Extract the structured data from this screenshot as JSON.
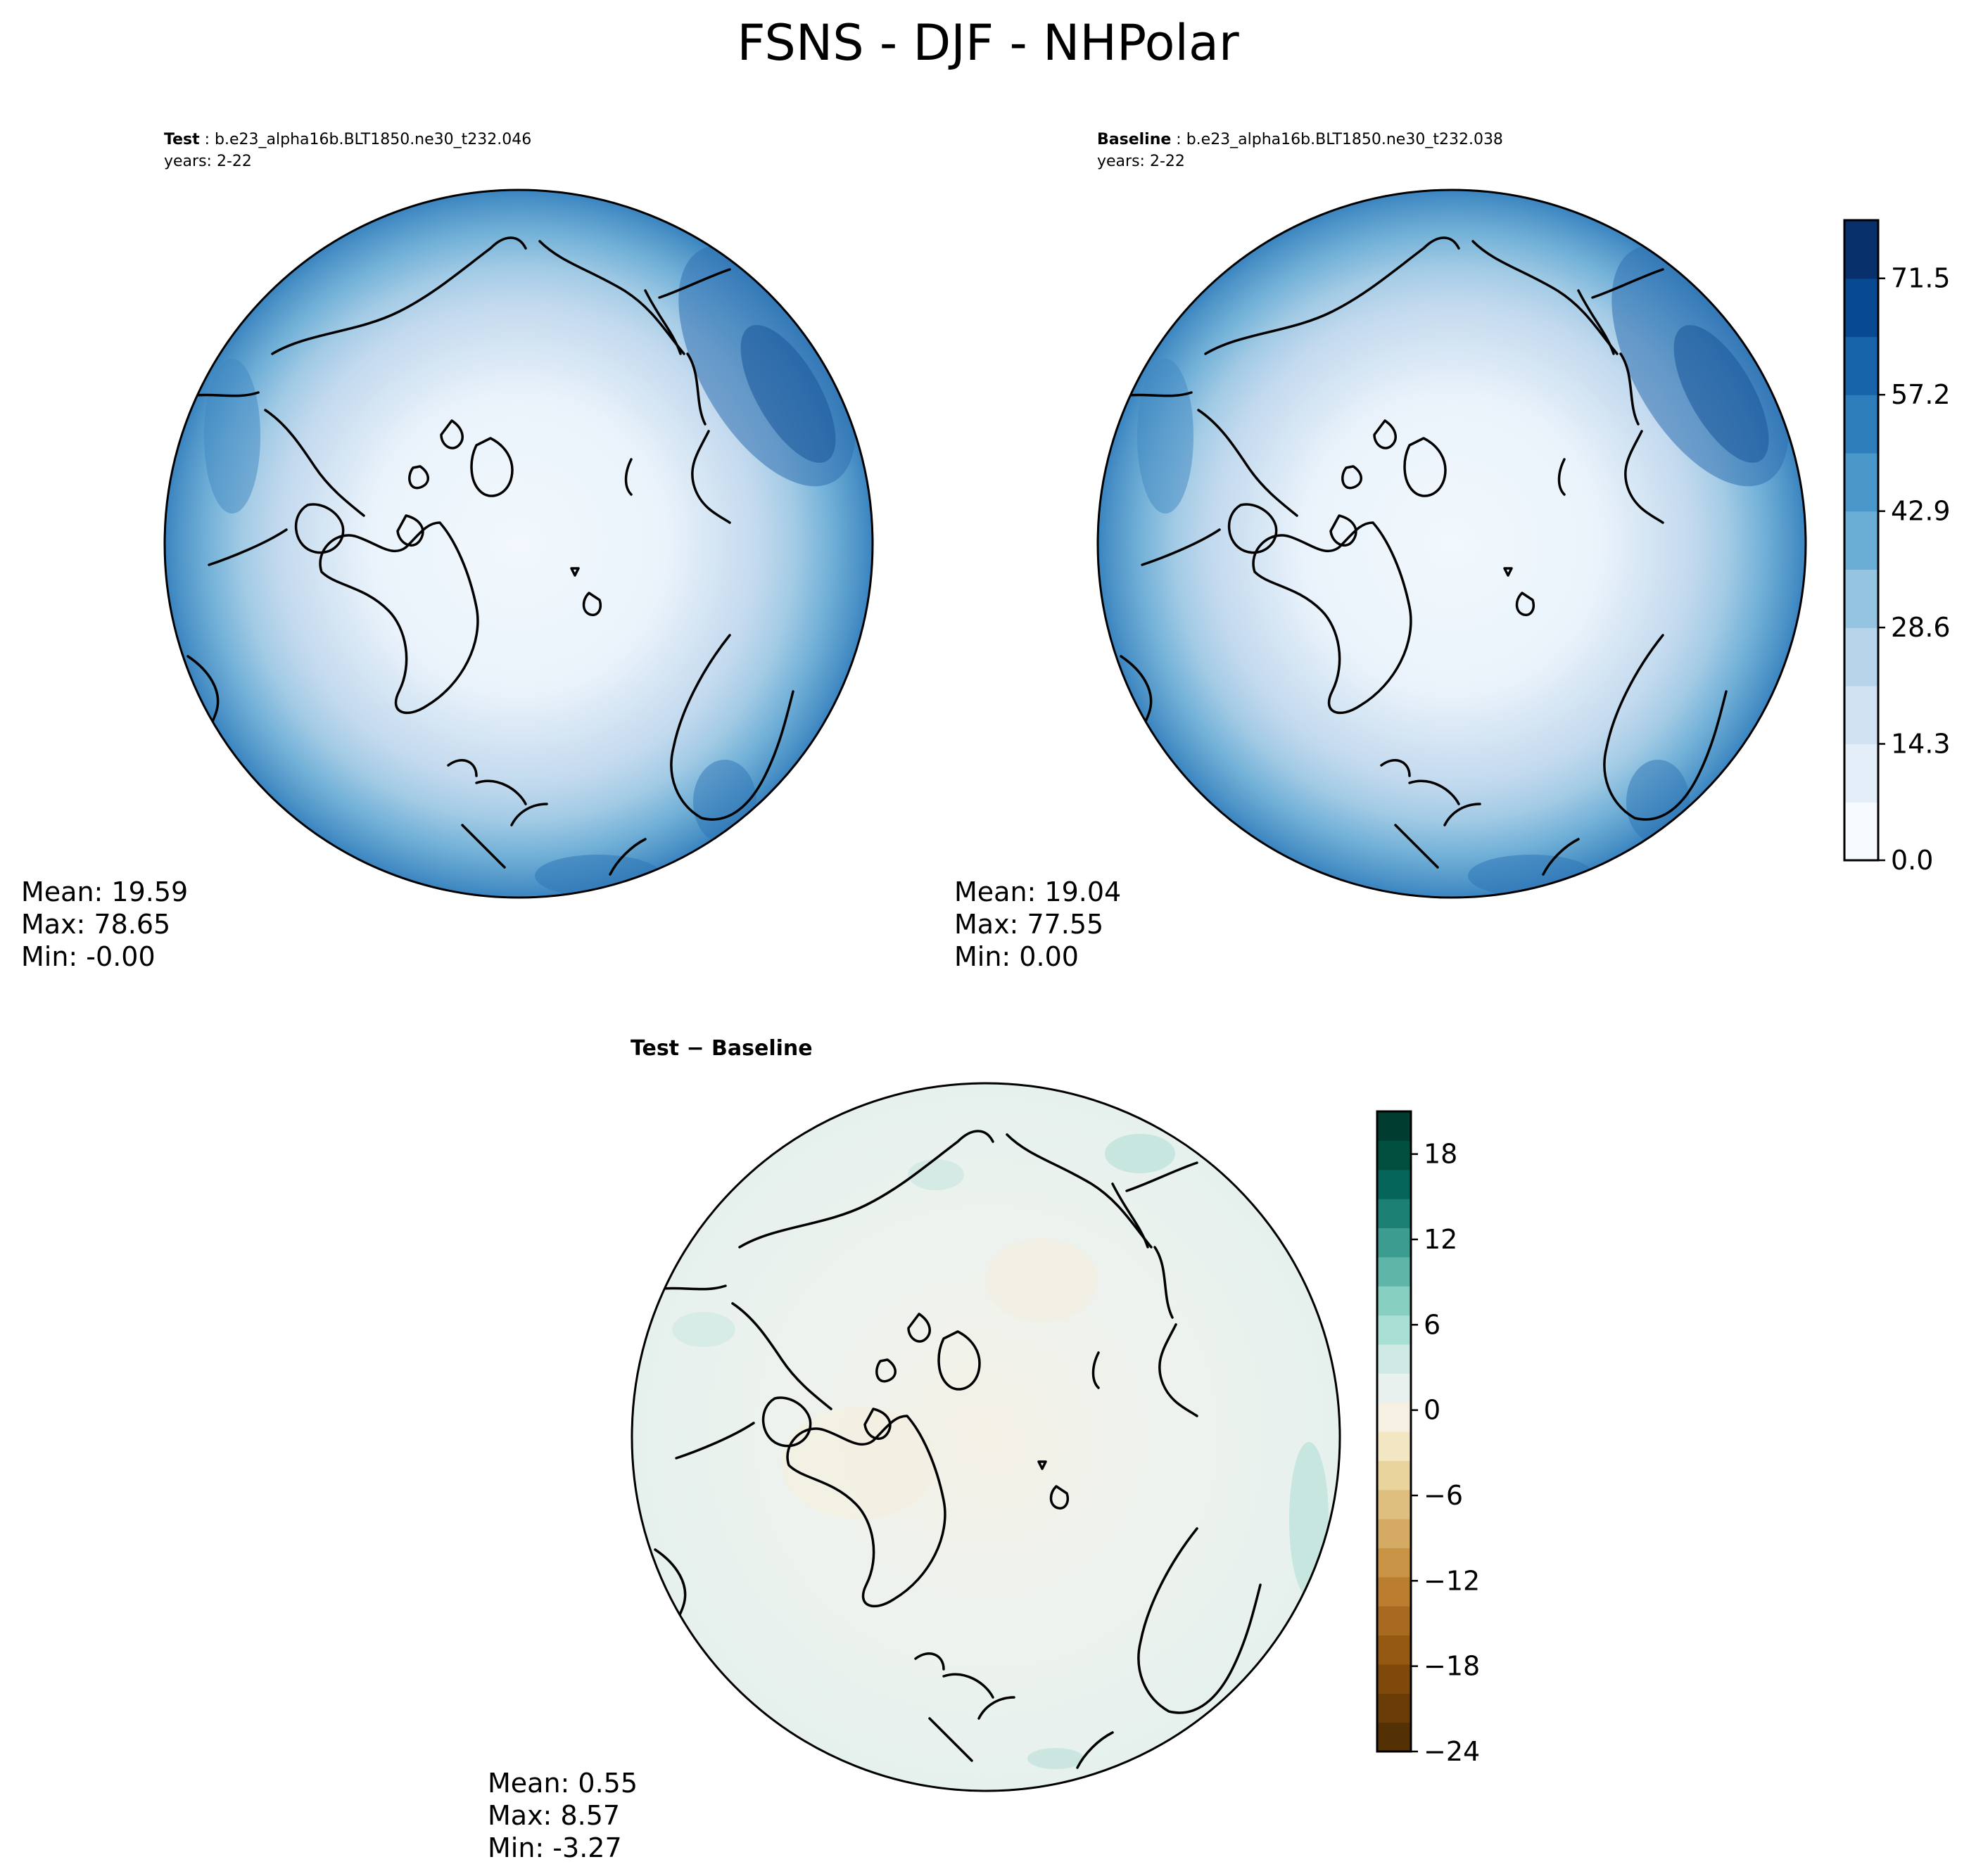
{
  "figure": {
    "title": "FSNS - DJF - NHPolar"
  },
  "panels": {
    "test": {
      "label_bold": "Test",
      "label_rest": " : b.e23_alpha16b.BLT1850.ne30_t232.046",
      "years": "years: 2-22",
      "stats": {
        "mean": "Mean: 19.59",
        "max": "Max: 78.65",
        "min": "Min: -0.00"
      }
    },
    "baseline": {
      "label_bold": "Baseline",
      "label_rest": " : b.e23_alpha16b.BLT1850.ne30_t232.038",
      "years": "years: 2-22",
      "stats": {
        "mean": "Mean: 19.04",
        "max": "Max: 77.55",
        "min": "Min:  0.00"
      }
    },
    "diff": {
      "label_bold": "Test − Baseline",
      "stats": {
        "mean": "Mean:  0.55",
        "max": "Max:  8.57",
        "min": "Min: -3.27"
      }
    }
  },
  "colorbars": {
    "main": {
      "min": 0,
      "max": 78.65,
      "ticks": [
        "71.5",
        "57.2",
        "42.9",
        "28.6",
        "14.3",
        "0.0"
      ],
      "tick_values": [
        71.5,
        57.2,
        42.9,
        28.6,
        14.3,
        0.0
      ],
      "colors": [
        "#f7fbff",
        "#e3eef8",
        "#d0e1f2",
        "#b7d4ea",
        "#94c4df",
        "#6aaed6",
        "#4a98c9",
        "#2e7ebc",
        "#1764ab",
        "#084a91",
        "#08306b"
      ]
    },
    "diff": {
      "min": -24,
      "max": 21,
      "ticks": [
        "18",
        "12",
        "6",
        "0",
        "−6",
        "−12",
        "−18",
        "−24"
      ],
      "tick_values": [
        18,
        12,
        6,
        0,
        -6,
        -12,
        -18,
        -24
      ],
      "colors": [
        "#543005",
        "#6a3d08",
        "#80490c",
        "#955914",
        "#a86a20",
        "#bb7d30",
        "#c99446",
        "#d5aa62",
        "#dfbf80",
        "#ead49e",
        "#f3e6c2",
        "#f5f0e2",
        "#e8f1ee",
        "#cfeae5",
        "#aadfd5",
        "#87cfc1",
        "#5fb5a8",
        "#3c9c8f",
        "#1d8074",
        "#06655a",
        "#01503f",
        "#003c30"
      ]
    }
  }
}
